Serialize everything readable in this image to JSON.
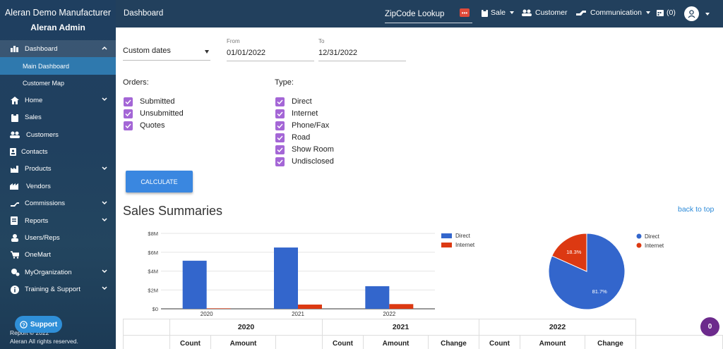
{
  "sidebar": {
    "org": "Aleran Demo Manufacturer",
    "user": "Aleran Admin",
    "items": [
      {
        "label": "Dashboard",
        "icon": "chart-icon"
      },
      {
        "label": "Home",
        "icon": "home-icon"
      },
      {
        "label": "Sales",
        "icon": "clipboard-icon"
      },
      {
        "label": "Customers",
        "icon": "users-icon"
      },
      {
        "label": "Contacts",
        "icon": "contact-card-icon"
      },
      {
        "label": "Products",
        "icon": "factory-icon"
      },
      {
        "label": "Vendors",
        "icon": "building-icon"
      },
      {
        "label": "Commissions",
        "icon": "handshake-icon"
      },
      {
        "label": "Reports",
        "icon": "report-icon"
      },
      {
        "label": "Users/Reps",
        "icon": "user-icon"
      },
      {
        "label": "OneMart",
        "icon": "cart-icon"
      },
      {
        "label": "MyOrganization",
        "icon": "org-icon"
      },
      {
        "label": "Training & Support",
        "icon": "info-icon"
      }
    ],
    "sub_items": [
      "Main Dashboard",
      "Customer Map"
    ],
    "support_label": "Support",
    "copyright_line1": "Report © 2022",
    "copyright_line2": "Aleran All rights reserved."
  },
  "topbar": {
    "title": "Dashboard",
    "zip_label": "ZipCode Lookup",
    "sale": "Sale",
    "customer": "Customer",
    "communication": "Communication",
    "calendar_count": "(0)"
  },
  "filters": {
    "range_value": "Custom dates",
    "from_label": "From",
    "from_value": "01/01/2022",
    "to_label": "To",
    "to_value": "12/31/2022",
    "orders_title": "Orders:",
    "orders": [
      "Submitted",
      "Unsubmitted",
      "Quotes"
    ],
    "type_title": "Type:",
    "types": [
      "Direct",
      "Internet",
      "Phone/Fax",
      "Road",
      "Show Room",
      "Undisclosed"
    ],
    "calculate_label": "CALCULATE"
  },
  "section": {
    "title": "Sales Summaries",
    "back_to_top": "back to top"
  },
  "chart_data": [
    {
      "type": "bar",
      "categories": [
        "2020",
        "2021",
        "2022"
      ],
      "series": [
        {
          "name": "Direct",
          "values": [
            5.1,
            6.5,
            2.4
          ],
          "color": "#3366cc"
        },
        {
          "name": "Internet",
          "values": [
            0.05,
            0.45,
            0.5
          ],
          "color": "#dc3912"
        }
      ],
      "yticks": [
        "$0",
        "$2M",
        "$4M",
        "$6M",
        "$8M"
      ],
      "ylim": [
        0,
        8
      ],
      "legend": "right"
    },
    {
      "type": "pie",
      "slices": [
        {
          "name": "Direct",
          "value": 81.7,
          "label": "81.7%",
          "color": "#3366cc"
        },
        {
          "name": "Internet",
          "value": 18.3,
          "label": "18.3%",
          "color": "#dc3912"
        }
      ],
      "legend": "right"
    }
  ],
  "table": {
    "years": [
      "2020",
      "2021",
      "2022"
    ],
    "count": "Count",
    "amount": "Amount",
    "change": "Change"
  },
  "notification_count": "0"
}
